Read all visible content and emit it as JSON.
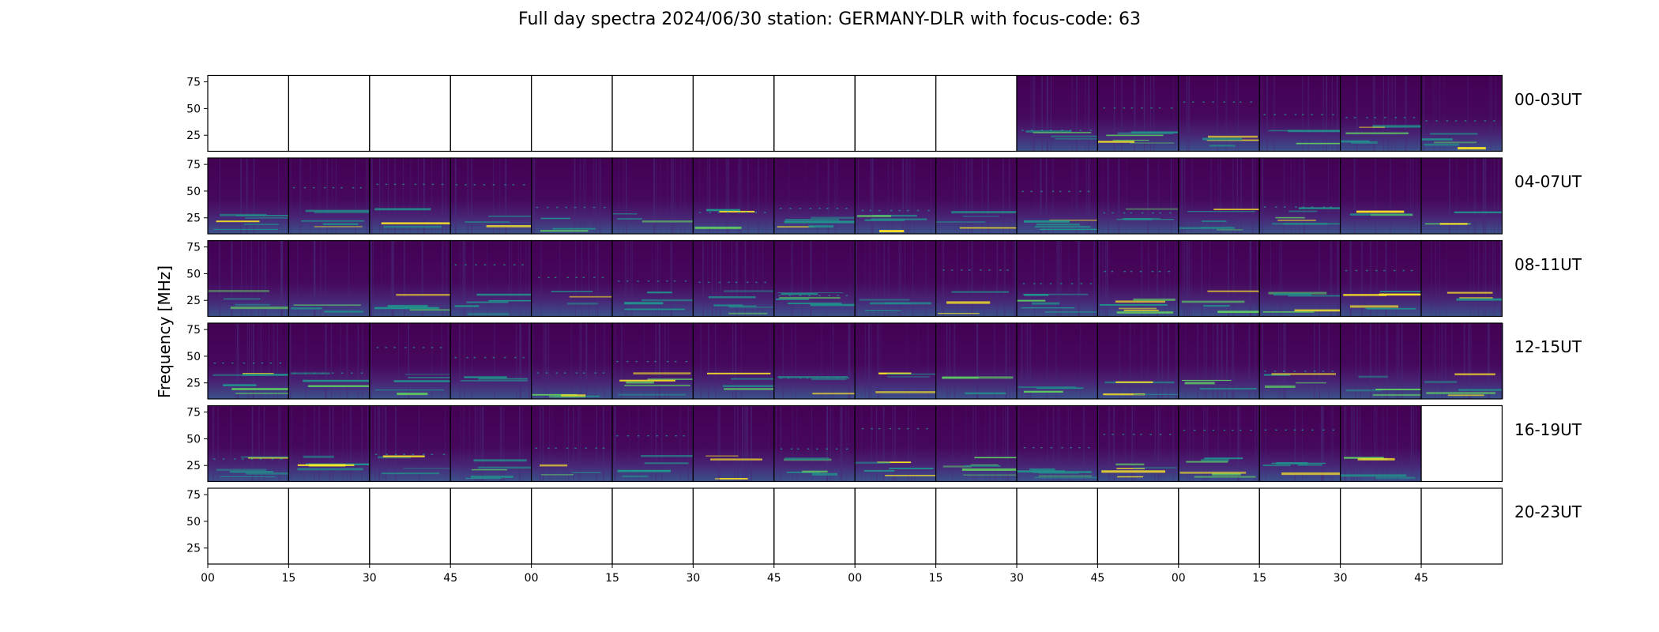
{
  "chart_data": {
    "type": "heatmap",
    "title": "Full day spectra 2024/06/30 station: GERMANY-DLR with focus-code: 63",
    "ylabel": "Frequency [MHz]",
    "xlabel": "",
    "colormap": "viridis",
    "ylim": [
      10,
      81
    ],
    "y_ticks": [
      "25",
      "50",
      "75"
    ],
    "x_ticks": [
      "00",
      "15",
      "30",
      "45",
      "00",
      "15",
      "30",
      "45",
      "00",
      "15",
      "30",
      "45",
      "00",
      "15",
      "30",
      "45"
    ],
    "panels_per_row": 16,
    "rows": [
      {
        "label": "00-03UT",
        "data_available": [
          false,
          false,
          false,
          false,
          false,
          false,
          false,
          false,
          false,
          false,
          true,
          true,
          true,
          true,
          true,
          true
        ]
      },
      {
        "label": "04-07UT",
        "data_available": [
          true,
          true,
          true,
          true,
          true,
          true,
          true,
          true,
          true,
          true,
          true,
          true,
          true,
          true,
          true,
          true
        ]
      },
      {
        "label": "08-11UT",
        "data_available": [
          true,
          true,
          true,
          true,
          true,
          true,
          true,
          true,
          true,
          true,
          true,
          true,
          true,
          true,
          true,
          true
        ]
      },
      {
        "label": "12-15UT",
        "data_available": [
          true,
          true,
          true,
          true,
          true,
          true,
          true,
          true,
          true,
          true,
          true,
          true,
          true,
          true,
          true,
          true
        ]
      },
      {
        "label": "16-19UT",
        "data_available": [
          true,
          true,
          true,
          true,
          true,
          true,
          true,
          true,
          true,
          true,
          true,
          true,
          true,
          true,
          true,
          false
        ]
      },
      {
        "label": "20-23UT",
        "data_available": [
          false,
          false,
          false,
          false,
          false,
          false,
          false,
          false,
          false,
          false,
          false,
          false,
          false,
          false,
          false,
          false
        ]
      }
    ],
    "colors": {
      "background": "#440154",
      "low": "#472c7a",
      "mid": "#21918c",
      "high": "#5ec962",
      "peak": "#fde725"
    }
  }
}
